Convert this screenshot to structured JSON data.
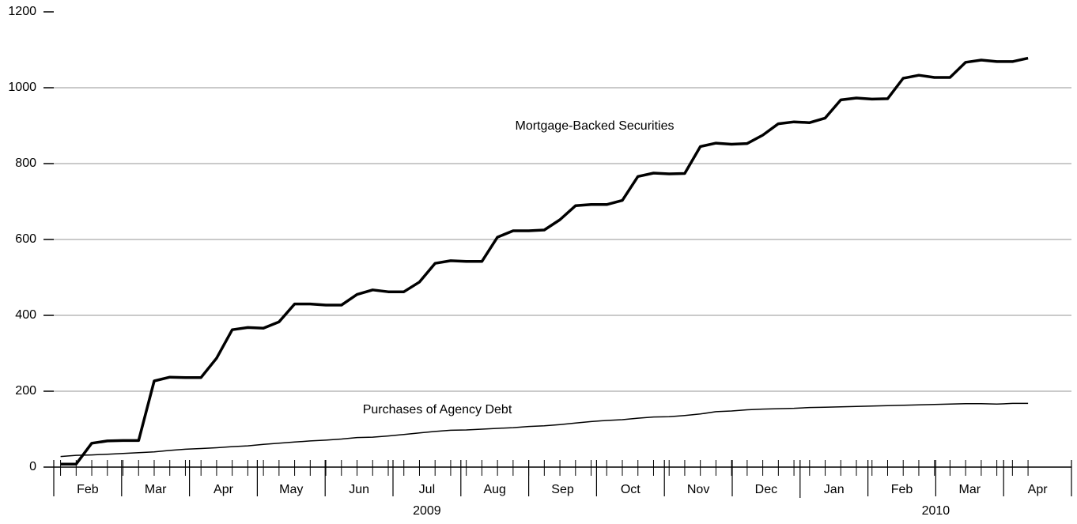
{
  "chart_data": {
    "type": "line",
    "categories": [
      "Feb",
      "Mar",
      "Apr",
      "May",
      "Jun",
      "Jul",
      "Aug",
      "Sep",
      "Oct",
      "Nov",
      "Dec",
      "Jan",
      "Feb",
      "Mar",
      "Apr"
    ],
    "years": [
      {
        "label": "2009",
        "start": 0,
        "end": 11
      },
      {
        "label": "2010",
        "start": 11,
        "end": 15
      }
    ],
    "x": [
      0.1,
      0.33,
      0.56,
      0.79,
      1.02,
      1.25,
      1.48,
      1.71,
      1.94,
      2.17,
      2.4,
      2.63,
      2.86,
      3.09,
      3.32,
      3.55,
      3.78,
      4.01,
      4.24,
      4.47,
      4.7,
      4.93,
      5.16,
      5.39,
      5.62,
      5.85,
      6.08,
      6.31,
      6.54,
      6.77,
      7.0,
      7.23,
      7.46,
      7.69,
      7.92,
      8.15,
      8.38,
      8.61,
      8.84,
      9.07,
      9.3,
      9.53,
      9.76,
      9.99,
      10.22,
      10.45,
      10.68,
      10.91,
      11.14,
      11.37,
      11.6,
      11.83,
      12.06,
      12.29,
      12.52,
      12.75,
      12.98,
      13.21,
      13.44,
      13.67,
      13.9,
      14.13,
      14.36
    ],
    "series": [
      {
        "name": "Mortgage-Backed Securities",
        "color": "#000000",
        "width": 3.5,
        "values": [
          8,
          8,
          63,
          69,
          70,
          70,
          227,
          237,
          236,
          236,
          287,
          362,
          368,
          366,
          383,
          430,
          430,
          427,
          427,
          455,
          467,
          462,
          462,
          488,
          537,
          544,
          542,
          542,
          606,
          623,
          623,
          625,
          652,
          689,
          692,
          692,
          703,
          766,
          775,
          773,
          774,
          845,
          854,
          851,
          853,
          875,
          905,
          910,
          908,
          920,
          968,
          973,
          970,
          971,
          1025,
          1033,
          1027,
          1027,
          1067,
          1073,
          1069,
          1069,
          1078
        ]
      },
      {
        "name": "Purchases of Agency Debt",
        "color": "#000000",
        "width": 1.5,
        "values": [
          28,
          31,
          32,
          34,
          36,
          38,
          40,
          44,
          47,
          49,
          51,
          54,
          56,
          60,
          63,
          66,
          69,
          71,
          74,
          78,
          79,
          82,
          86,
          90,
          94,
          97,
          98,
          100,
          102,
          104,
          107,
          109,
          112,
          116,
          120,
          123,
          125,
          129,
          132,
          133,
          136,
          140,
          146,
          148,
          151,
          153,
          154,
          155,
          157,
          158,
          159,
          160,
          161,
          162,
          163,
          164,
          165,
          166,
          167,
          167,
          166,
          168,
          168
        ]
      }
    ],
    "xlim": [
      0,
      15
    ],
    "xticks": [
      0,
      1,
      2,
      3,
      4,
      5,
      6,
      7,
      8,
      9,
      10,
      11,
      12,
      13,
      14,
      15
    ],
    "ylim": [
      0,
      1200
    ],
    "yticks": [
      0,
      200,
      400,
      600,
      800,
      1000,
      1200
    ],
    "grid": true
  }
}
